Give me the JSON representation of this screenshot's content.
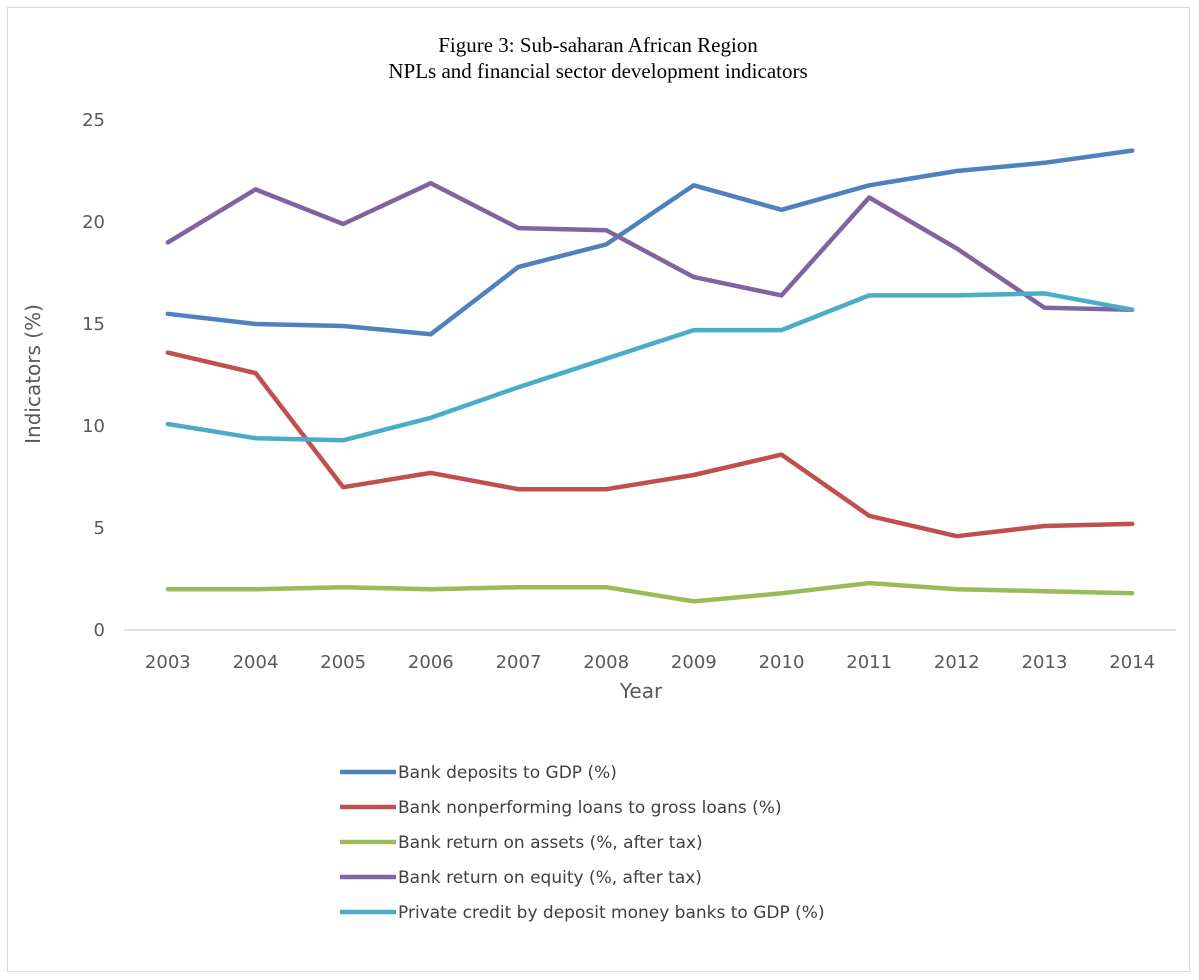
{
  "chart_data": {
    "type": "line",
    "title": "Figure 3: Sub-saharan African Region",
    "subtitle": "NPLs and financial sector development indicators",
    "xlabel": "Year",
    "ylabel": "Indicators (%)",
    "ylim": [
      0,
      25
    ],
    "yticks": [
      0,
      5,
      10,
      15,
      20,
      25
    ],
    "x": [
      "2003",
      "2004",
      "2005",
      "2006",
      "2007",
      "2008",
      "2009",
      "2010",
      "2011",
      "2012",
      "2013",
      "2014"
    ],
    "grid": false,
    "legend_position": "bottom",
    "series": [
      {
        "name": "Bank deposits to GDP (%)",
        "color": "#4F81BD",
        "values": [
          15.5,
          15.0,
          14.9,
          14.5,
          17.8,
          18.9,
          21.8,
          20.6,
          21.8,
          22.5,
          22.9,
          23.5
        ]
      },
      {
        "name": "Bank nonperforming loans to gross loans (%)",
        "color": "#C0504D",
        "values": [
          13.6,
          12.6,
          7.0,
          7.7,
          6.9,
          6.9,
          7.6,
          8.6,
          5.6,
          4.6,
          5.1,
          5.2
        ]
      },
      {
        "name": "Bank return on assets (%, after tax)",
        "color": "#9BBB59",
        "values": [
          2.0,
          2.0,
          2.1,
          2.0,
          2.1,
          2.1,
          1.4,
          1.8,
          2.3,
          2.0,
          1.9,
          1.8
        ]
      },
      {
        "name": "Bank return on equity (%, after tax)",
        "color": "#8064A2",
        "values": [
          19.0,
          21.6,
          19.9,
          21.9,
          19.7,
          19.6,
          17.3,
          16.4,
          21.2,
          18.7,
          15.8,
          15.7
        ]
      },
      {
        "name": "Private credit by deposit money banks to GDP (%)",
        "color": "#4BACC6",
        "values": [
          10.1,
          9.4,
          9.3,
          10.4,
          11.9,
          13.3,
          14.7,
          14.7,
          16.4,
          16.4,
          16.5,
          15.7
        ]
      }
    ]
  }
}
